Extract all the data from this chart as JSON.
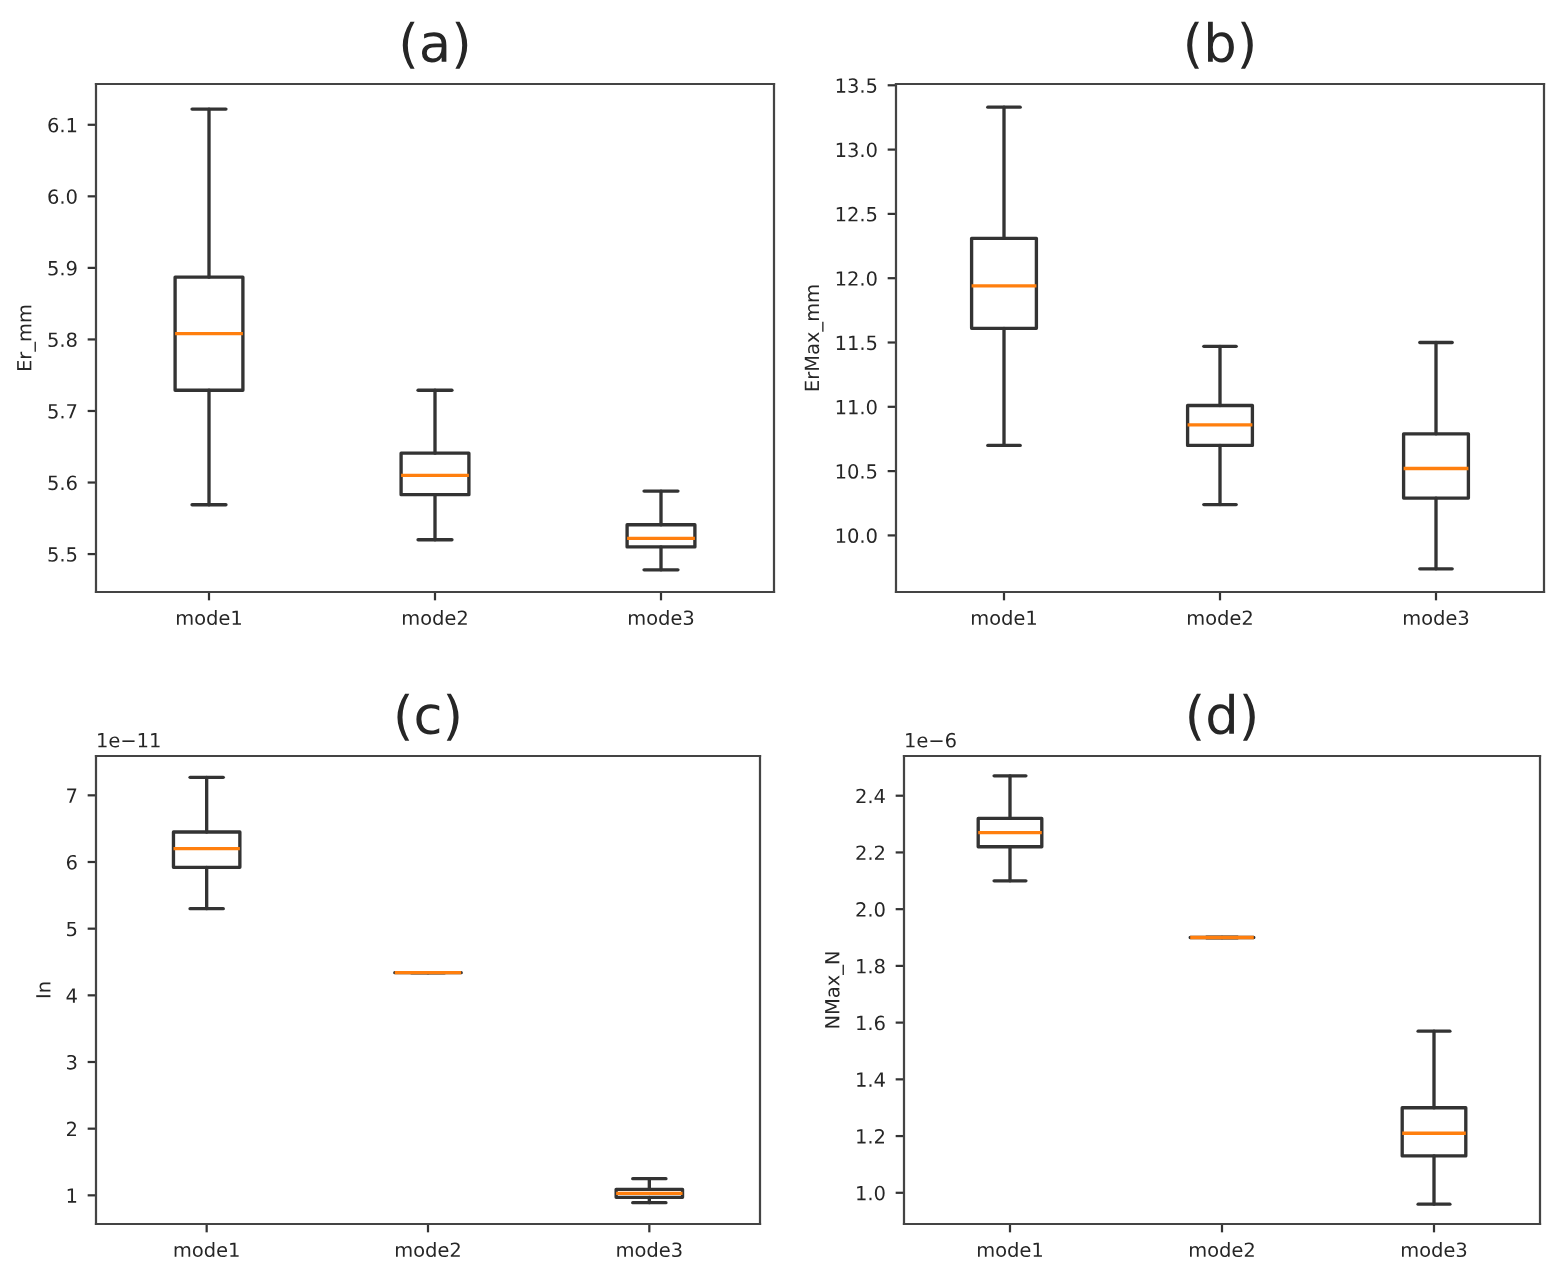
{
  "chart_data": [
    {
      "type": "box",
      "title": "(a)",
      "ylabel": "Er_mm",
      "categories": [
        "mode1",
        "mode2",
        "mode3"
      ],
      "ylim": [
        5.447,
        6.157
      ],
      "yticks": [
        5.5,
        5.6,
        5.7,
        5.8,
        5.9,
        {
          "value": 6,
          "label": "6.0"
        },
        6.1
      ],
      "grid": false,
      "legend": false,
      "boxes": [
        {
          "low": 5.569,
          "q1": 5.729,
          "median": 5.808,
          "q3": 5.887,
          "high": 6.122
        },
        {
          "low": 5.52,
          "q1": 5.583,
          "median": 5.61,
          "q3": 5.641,
          "high": 5.729
        },
        {
          "low": 5.478,
          "q1": 5.51,
          "median": 5.522,
          "q3": 5.541,
          "high": 5.588
        }
      ]
    },
    {
      "type": "box",
      "title": "(b)",
      "ylabel": "ErMax_mm",
      "categories": [
        "mode1",
        "mode2",
        "mode3"
      ],
      "ylim": [
        9.56,
        13.51
      ],
      "yticks": [
        {
          "value": 10,
          "label": "10.0"
        },
        10.5,
        {
          "value": 11,
          "label": "11.0"
        },
        11.5,
        {
          "value": 12,
          "label": "12.0"
        },
        12.5,
        {
          "value": 13,
          "label": "13.0"
        },
        13.5
      ],
      "grid": false,
      "legend": false,
      "boxes": [
        {
          "low": 10.7,
          "q1": 11.61,
          "median": 11.94,
          "q3": 12.31,
          "high": 13.33
        },
        {
          "low": 10.24,
          "q1": 10.7,
          "median": 10.86,
          "q3": 11.01,
          "high": 11.47
        },
        {
          "low": 9.74,
          "q1": 10.29,
          "median": 10.52,
          "q3": 10.79,
          "high": 11.5
        }
      ]
    },
    {
      "type": "box",
      "title": "(c)",
      "ylabel": "In",
      "annotations": [
        "1e−11"
      ],
      "categories": [
        "mode1",
        "mode2",
        "mode3"
      ],
      "ylim": [
        0.57,
        7.59
      ],
      "yticks": [
        1,
        2,
        3,
        4,
        5,
        6,
        7
      ],
      "grid": false,
      "legend": false,
      "boxes": [
        {
          "low": 5.3,
          "q1": 5.92,
          "median": 6.2,
          "q3": 6.45,
          "high": 7.27
        },
        {
          "low": 4.34,
          "q1": 4.34,
          "median": 4.34,
          "q3": 4.34,
          "high": 4.34
        },
        {
          "low": 0.89,
          "q1": 0.97,
          "median": 1.03,
          "q3": 1.09,
          "high": 1.25
        }
      ]
    },
    {
      "type": "box",
      "title": "(d)",
      "ylabel": "NMax_N",
      "annotations": [
        "1e−6"
      ],
      "categories": [
        "mode1",
        "mode2",
        "mode3"
      ],
      "ylim": [
        0.89,
        2.54
      ],
      "yticks": [
        {
          "value": 1,
          "label": "1.0"
        },
        1.2,
        1.4,
        1.6,
        1.8,
        {
          "value": 2,
          "label": "2.0"
        },
        2.2,
        2.4
      ],
      "grid": false,
      "legend": false,
      "boxes": [
        {
          "low": 2.1,
          "q1": 2.22,
          "median": 2.27,
          "q3": 2.32,
          "high": 2.47
        },
        {
          "low": 1.9,
          "q1": 1.9,
          "median": 1.9,
          "q3": 1.9,
          "high": 1.9
        },
        {
          "low": 0.96,
          "q1": 1.13,
          "median": 1.21,
          "q3": 1.3,
          "high": 1.57
        }
      ]
    }
  ]
}
